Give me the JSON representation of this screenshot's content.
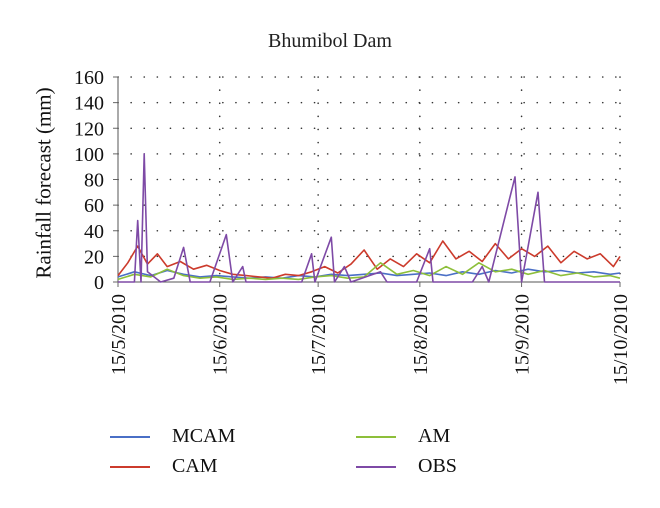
{
  "chart_data": {
    "type": "line",
    "title": "Bhumibol Dam",
    "xlabel": "",
    "ylabel": "Rainfall forecast (mm)",
    "ylim": [
      0,
      160
    ],
    "yticks": [
      0,
      20,
      40,
      60,
      80,
      100,
      120,
      140,
      160
    ],
    "xlim": [
      "15/5/2010",
      "15/10/2010"
    ],
    "xticks": [
      "15/5/2010",
      "15/6/2010",
      "15/7/2010",
      "15/8/2010",
      "15/9/2010",
      "15/10/2010"
    ],
    "grid": true,
    "legend": "bottom",
    "series": [
      {
        "name": "MCAM",
        "color": "#4a6fc6",
        "points": [
          [
            "15/5/2010",
            4
          ],
          [
            "20/5/2010",
            8
          ],
          [
            "25/5/2010",
            5
          ],
          [
            "30/5/2010",
            9
          ],
          [
            "4/6/2010",
            6
          ],
          [
            "9/6/2010",
            4
          ],
          [
            "14/6/2010",
            5
          ],
          [
            "19/6/2010",
            4
          ],
          [
            "24/6/2010",
            3
          ],
          [
            "29/6/2010",
            4
          ],
          [
            "4/7/2010",
            3
          ],
          [
            "9/7/2010",
            5
          ],
          [
            "14/7/2010",
            4
          ],
          [
            "19/7/2010",
            6
          ],
          [
            "24/7/2010",
            5
          ],
          [
            "29/7/2010",
            6
          ],
          [
            "3/8/2010",
            7
          ],
          [
            "8/8/2010",
            5
          ],
          [
            "13/8/2010",
            6
          ],
          [
            "18/8/2010",
            7
          ],
          [
            "23/8/2010",
            5
          ],
          [
            "28/8/2010",
            8
          ],
          [
            "2/9/2010",
            6
          ],
          [
            "7/9/2010",
            9
          ],
          [
            "12/9/2010",
            7
          ],
          [
            "17/9/2010",
            10
          ],
          [
            "22/9/2010",
            8
          ],
          [
            "27/9/2010",
            9
          ],
          [
            "2/10/2010",
            7
          ],
          [
            "7/10/2010",
            8
          ],
          [
            "12/10/2010",
            6
          ],
          [
            "15/10/2010",
            7
          ]
        ]
      },
      {
        "name": "CAM",
        "color": "#cc3b2c",
        "points": [
          [
            "15/5/2010",
            5
          ],
          [
            "18/5/2010",
            15
          ],
          [
            "21/5/2010",
            28
          ],
          [
            "24/5/2010",
            14
          ],
          [
            "27/5/2010",
            22
          ],
          [
            "30/5/2010",
            12
          ],
          [
            "3/6/2010",
            16
          ],
          [
            "7/6/2010",
            10
          ],
          [
            "11/6/2010",
            13
          ],
          [
            "15/6/2010",
            9
          ],
          [
            "19/6/2010",
            6
          ],
          [
            "23/6/2010",
            5
          ],
          [
            "27/6/2010",
            4
          ],
          [
            "1/7/2010",
            3
          ],
          [
            "5/7/2010",
            6
          ],
          [
            "9/7/2010",
            5
          ],
          [
            "13/7/2010",
            8
          ],
          [
            "17/7/2010",
            12
          ],
          [
            "21/7/2010",
            7
          ],
          [
            "25/7/2010",
            14
          ],
          [
            "29/7/2010",
            25
          ],
          [
            "2/8/2010",
            10
          ],
          [
            "6/8/2010",
            18
          ],
          [
            "10/8/2010",
            12
          ],
          [
            "14/8/2010",
            22
          ],
          [
            "18/8/2010",
            15
          ],
          [
            "22/8/2010",
            32
          ],
          [
            "26/8/2010",
            18
          ],
          [
            "30/8/2010",
            24
          ],
          [
            "3/9/2010",
            16
          ],
          [
            "7/9/2010",
            30
          ],
          [
            "11/9/2010",
            18
          ],
          [
            "15/9/2010",
            26
          ],
          [
            "19/9/2010",
            20
          ],
          [
            "23/9/2010",
            28
          ],
          [
            "27/9/2010",
            15
          ],
          [
            "1/10/2010",
            24
          ],
          [
            "5/10/2010",
            18
          ],
          [
            "9/10/2010",
            22
          ],
          [
            "13/10/2010",
            12
          ],
          [
            "15/10/2010",
            20
          ]
        ]
      },
      {
        "name": "AM",
        "color": "#8dbf3a",
        "points": [
          [
            "15/5/2010",
            2
          ],
          [
            "20/5/2010",
            6
          ],
          [
            "25/5/2010",
            4
          ],
          [
            "30/5/2010",
            10
          ],
          [
            "4/6/2010",
            5
          ],
          [
            "9/6/2010",
            3
          ],
          [
            "14/6/2010",
            4
          ],
          [
            "19/6/2010",
            2
          ],
          [
            "24/6/2010",
            3
          ],
          [
            "29/6/2010",
            2
          ],
          [
            "4/7/2010",
            3
          ],
          [
            "9/7/2010",
            2
          ],
          [
            "14/7/2010",
            4
          ],
          [
            "19/7/2010",
            5
          ],
          [
            "24/7/2010",
            3
          ],
          [
            "29/7/2010",
            4
          ],
          [
            "3/8/2010",
            15
          ],
          [
            "8/8/2010",
            6
          ],
          [
            "13/8/2010",
            9
          ],
          [
            "18/8/2010",
            5
          ],
          [
            "23/8/2010",
            12
          ],
          [
            "28/8/2010",
            6
          ],
          [
            "2/9/2010",
            15
          ],
          [
            "7/9/2010",
            8
          ],
          [
            "12/9/2010",
            10
          ],
          [
            "17/9/2010",
            6
          ],
          [
            "22/9/2010",
            9
          ],
          [
            "27/9/2010",
            5
          ],
          [
            "2/10/2010",
            7
          ],
          [
            "7/10/2010",
            4
          ],
          [
            "12/10/2010",
            5
          ],
          [
            "15/10/2010",
            3
          ]
        ]
      },
      {
        "name": "OBS",
        "color": "#7e4aa6",
        "points": [
          [
            "15/5/2010",
            0
          ],
          [
            "20/5/2010",
            0
          ],
          [
            "21/5/2010",
            48
          ],
          [
            "22/5/2010",
            0
          ],
          [
            "23/5/2010",
            100
          ],
          [
            "24/5/2010",
            8
          ],
          [
            "28/5/2010",
            0
          ],
          [
            "1/6/2010",
            3
          ],
          [
            "4/6/2010",
            27
          ],
          [
            "6/6/2010",
            0
          ],
          [
            "12/6/2010",
            0
          ],
          [
            "17/6/2010",
            37
          ],
          [
            "19/6/2010",
            0
          ],
          [
            "22/6/2010",
            12
          ],
          [
            "23/6/2010",
            0
          ],
          [
            "1/7/2010",
            0
          ],
          [
            "10/7/2010",
            0
          ],
          [
            "13/7/2010",
            22
          ],
          [
            "14/7/2010",
            0
          ],
          [
            "19/7/2010",
            35
          ],
          [
            "20/7/2010",
            0
          ],
          [
            "23/7/2010",
            12
          ],
          [
            "25/7/2010",
            0
          ],
          [
            "3/8/2010",
            8
          ],
          [
            "5/8/2010",
            0
          ],
          [
            "14/8/2010",
            0
          ],
          [
            "18/8/2010",
            26
          ],
          [
            "19/8/2010",
            0
          ],
          [
            "31/8/2010",
            0
          ],
          [
            "3/9/2010",
            12
          ],
          [
            "5/9/2010",
            0
          ],
          [
            "13/9/2010",
            82
          ],
          [
            "15/9/2010",
            0
          ],
          [
            "20/9/2010",
            70
          ],
          [
            "22/9/2010",
            0
          ],
          [
            "30/9/2010",
            0
          ],
          [
            "15/10/2010",
            0
          ]
        ]
      }
    ]
  }
}
